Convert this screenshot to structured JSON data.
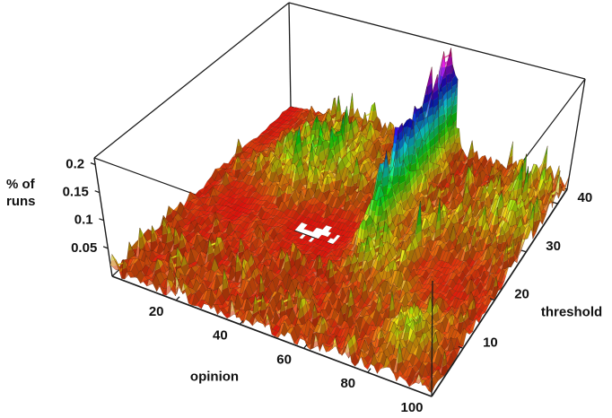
{
  "figure": {
    "background": "#ffffff",
    "text_color": "#111111",
    "line_color": "#1c1c1c"
  },
  "chart_data": {
    "type": "surface",
    "xlabel": "opinion",
    "ylabel": "threshold",
    "zlabel": "% of runs",
    "zlabel_lines": [
      "% of",
      "runs"
    ],
    "x_range": [
      0,
      100
    ],
    "y_range": [
      0,
      43
    ],
    "z_range": [
      0,
      0.212
    ],
    "x_ticks": [
      20,
      40,
      60,
      80,
      100
    ],
    "y_ticks": [
      10,
      20,
      30,
      40
    ],
    "z_ticks": [
      0.05,
      0.1,
      0.15,
      0.2
    ],
    "z_tick_labels": [
      "0.05",
      "0.1",
      "0.15",
      "0.2"
    ],
    "legend": "none",
    "grid_lines": "mesh on surface, no wall grid",
    "colormap": {
      "model": "hue-wrap",
      "order": "red(low) - orange - yellow - green - cyan - blue - magenta(high), wraps to red at very top",
      "hue_per_z": 1550,
      "saturation": 90,
      "lightness": 46
    },
    "view": {
      "corners": {
        "b000": [
          125,
          308
        ],
        "b100": [
          481,
          442
        ],
        "b110": [
          632,
          211
        ],
        "b010": [
          324,
          119
        ],
        "t001": [
          105,
          176
        ],
        "t101": [
          482,
          313
        ],
        "t111": [
          652,
          88
        ],
        "t011": [
          322,
          3
        ]
      }
    },
    "grid": {
      "nx": 100,
      "ny": 43,
      "seed": 77041
    },
    "features": {
      "noise_floor": {
        "base": 0.002,
        "amp": 0.022,
        "spike_chance": 0.09,
        "spike_amp": 0.03
      },
      "back_left_cluster": {
        "center": [
          24,
          32
        ],
        "sigma": [
          16,
          9
        ],
        "amp": 0.062
      },
      "right_mid_cluster": {
        "center": [
          72,
          22
        ],
        "sigma": [
          9,
          8
        ],
        "amp": 0.06,
        "green_spikes": [
          [
            71,
            23,
            0.105
          ],
          [
            74,
            26,
            0.09
          ]
        ]
      },
      "pre_ridge_cluster": {
        "center": [
          59,
          20
        ],
        "sigma": [
          6,
          4
        ],
        "amp": 0.05
      },
      "front_right_streak": {
        "center": [
          86,
          8
        ],
        "sigma": [
          7,
          5
        ],
        "amp": 0.035
      },
      "right_back_boost": {
        "center": [
          90,
          35
        ],
        "sigma": [
          11,
          10
        ],
        "amp": 0.03
      },
      "consensus_ridge": {
        "opinion_center": 55.5,
        "opinion_sigma": 3.3,
        "threshold_onset": 23,
        "onset_softness": 1.25,
        "amp_base": 0.115,
        "amp_growth": 0.105,
        "row_jitter": [
          0.6,
          1.08
        ],
        "max": 0.215
      },
      "gap_band": {
        "threshold_center": 21,
        "threshold_sigma": 6.5,
        "opinion_center": 45,
        "opinion_sigma": 24,
        "max_strength": 0.97
      },
      "back_left_flat": {
        "opinion_sigma": 12,
        "threshold_mid": 32,
        "threshold_softness": 2.5,
        "strength": 0.92
      }
    }
  }
}
